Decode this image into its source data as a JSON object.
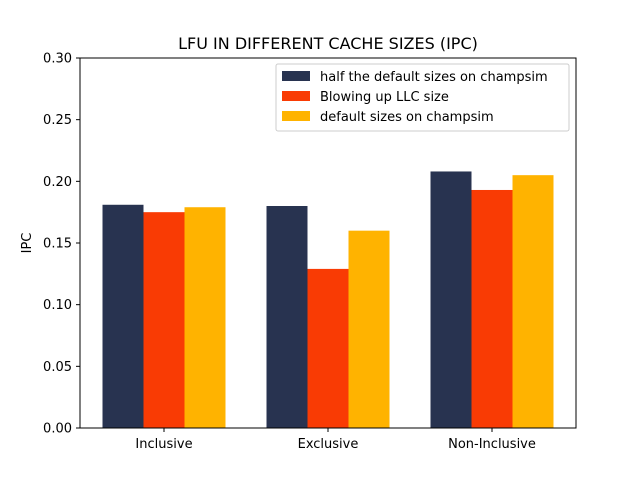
{
  "chart_data": {
    "type": "bar",
    "title": "LFU IN DIFFERENT CACHE SIZES (IPC)",
    "xlabel": "",
    "ylabel": "IPC",
    "categories": [
      "Inclusive",
      "Exclusive",
      "Non-Inclusive"
    ],
    "series": [
      {
        "name": "half the default sizes on champsim",
        "color": "#283350",
        "values": [
          0.181,
          0.18,
          0.208
        ]
      },
      {
        "name": "Blowing up LLC size",
        "color": "#f93b04",
        "values": [
          0.175,
          0.129,
          0.193
        ]
      },
      {
        "name": "default sizes on champsim",
        "color": "#ffb300",
        "values": [
          0.179,
          0.16,
          0.205
        ]
      }
    ],
    "ylim": [
      0,
      0.3
    ],
    "yticks": [
      "0.00",
      "0.05",
      "0.10",
      "0.15",
      "0.20",
      "0.25",
      "0.30"
    ],
    "grid": false,
    "legend_position": "top-right"
  }
}
